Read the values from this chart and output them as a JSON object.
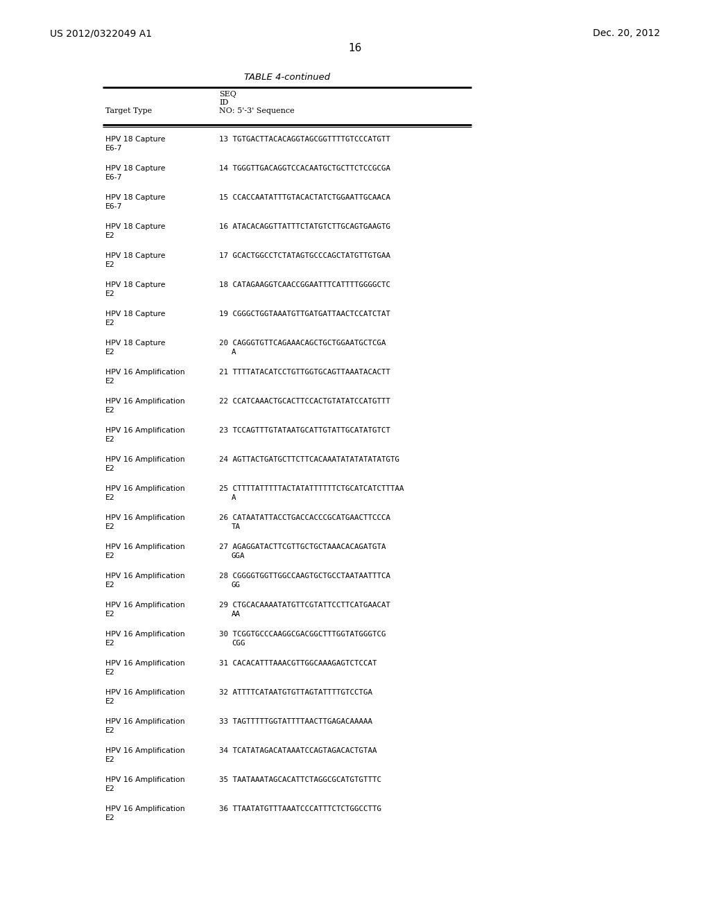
{
  "header_left": "US 2012/0322049 A1",
  "header_right": "Dec. 20, 2012",
  "page_number": "16",
  "table_title": "TABLE 4-continued",
  "col1_header": "Target Type",
  "col2_header_line1": "SEQ",
  "col2_header_line2": "ID",
  "col2_header_line3": "NO: 5'-3' Sequence",
  "rows": [
    [
      "HPV 18 Capture\nE6-7",
      "13 TGTGACTTACACAGGTAGCGGTTTTGTCCCATGTT"
    ],
    [
      "HPV 18 Capture\nE6-7",
      "14 TGGGTTGACAGGTCCACAATGCTGCTTCTCCGCGA"
    ],
    [
      "HPV 18 Capture\nE6-7",
      "15 CCACCAATATTTGTACACTATCTGGAATTGCAACA"
    ],
    [
      "HPV 18 Capture\nE2",
      "16 ATACACAGGTTATTTCTATGTCTTGCAGTGAAGTG"
    ],
    [
      "HPV 18 Capture\nE2",
      "17 GCACTGGCCTCTATAGTGCCCAGCTATGTTGTGAA"
    ],
    [
      "HPV 18 Capture\nE2",
      "18 CATAGAAGGTCAACCGGAATTTCATTTTGGGGCTC"
    ],
    [
      "HPV 18 Capture\nE2",
      "19 CGGGCTGGTAAATGTTGATGATTAACTCCATCTAT"
    ],
    [
      "HPV 18 Capture\nE2",
      "20 CAGGGTGTTCAGAAACAGCTGCTGGAATGCTCGA\n   A"
    ],
    [
      "HPV 16 Amplification\nE2",
      "21 TTTTATACATCCTGTTGGTGCAGTTAAATACACTT"
    ],
    [
      "HPV 16 Amplification\nE2",
      "22 CCATCAAACTGCACTTCCACTGTATATCCATGTTT"
    ],
    [
      "HPV 16 Amplification\nE2",
      "23 TCCAGTTTGTATAATGCATTGTATTGCATATGTCT"
    ],
    [
      "HPV 16 Amplification\nE2",
      "24 AGTTACTGATGCTTCTTCACAAATATATATATATGTG"
    ],
    [
      "HPV 16 Amplification\nE2",
      "25 CTTTTATTTTTACTATATTTTTTCTGCATCATCTTTAA\n   A"
    ],
    [
      "HPV 16 Amplification\nE2",
      "26 CATAATATTACCTGACCACCCGCATGAACTTCCCA\n   TA"
    ],
    [
      "HPV 16 Amplification\nE2",
      "27 AGAGGATACTTCGTTGCTGCTAAACACAGATGTA\n   GGA"
    ],
    [
      "HPV 16 Amplification\nE2",
      "28 CGGGGTGGTTGGCCAAGTGCTGCCTAATAATTTCA\n   GG"
    ],
    [
      "HPV 16 Amplification\nE2",
      "29 CTGCACAAAATATGTTCGTATTCCTTCATGAACAT\n   AA"
    ],
    [
      "HPV 16 Amplification\nE2",
      "30 TCGGTGCCCAAGGCGACGGCTTTGGTATGGGTCG\n   CGG"
    ],
    [
      "HPV 16 Amplification\nE2",
      "31 CACACATTTAAACGTTGGCAAAGAGTCTCCAT"
    ],
    [
      "HPV 16 Amplification\nE2",
      "32 ATTTTCATAATGTGTTAGTATTTTGTCCTGA"
    ],
    [
      "HPV 16 Amplification\nE2",
      "33 TAGTTTTTGGTATTTTAACTTGAGACAAAAA"
    ],
    [
      "HPV 16 Amplification\nE2",
      "34 TCATATAGACATAAATCCAGTAGACACTGTAA"
    ],
    [
      "HPV 16 Amplification\nE2",
      "35 TAATAAATAGCACATTCTAGGCGCATGTGTTTC"
    ],
    [
      "HPV 16 Amplification\nE2",
      "36 TTAATATGTTTAAATCCCATTTCTCTGGCCTTG"
    ]
  ],
  "background_color": "#ffffff",
  "text_color": "#000000"
}
